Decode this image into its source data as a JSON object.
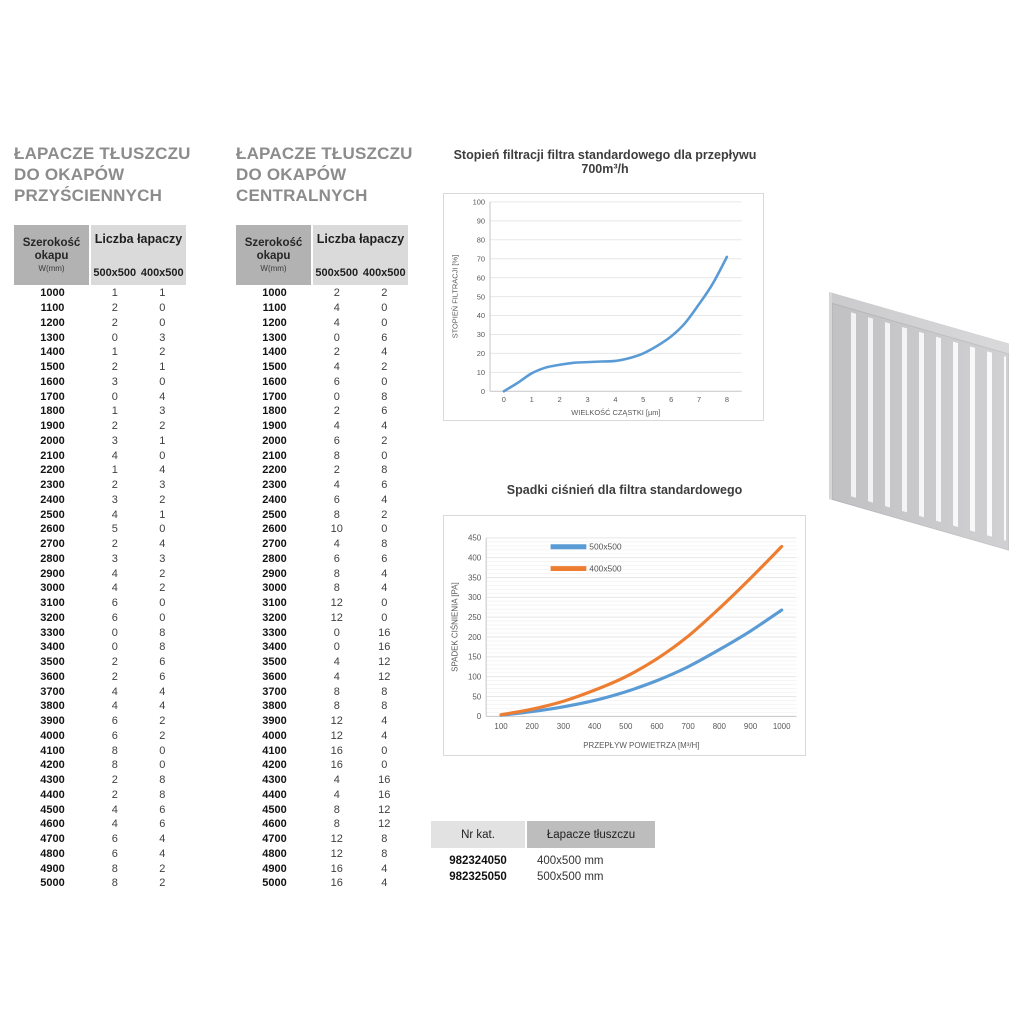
{
  "tables": {
    "wall": {
      "title_lines": [
        "ŁAPACZE TŁUSZCZU",
        "DO OKAPÓW",
        "PRZYŚCIENNYCH"
      ],
      "header": {
        "col1_line1": "Szerokość",
        "col1_line2": "okapu",
        "col1_sub": "W(mm)",
        "group": "Liczba łapaczy",
        "col2": "500x500",
        "col3": "400x500"
      },
      "rows": [
        [
          1000,
          1,
          1
        ],
        [
          1100,
          2,
          0
        ],
        [
          1200,
          2,
          0
        ],
        [
          1300,
          0,
          3
        ],
        [
          1400,
          1,
          2
        ],
        [
          1500,
          2,
          1
        ],
        [
          1600,
          3,
          0
        ],
        [
          1700,
          0,
          4
        ],
        [
          1800,
          1,
          3
        ],
        [
          1900,
          2,
          2
        ],
        [
          2000,
          3,
          1
        ],
        [
          2100,
          4,
          0
        ],
        [
          2200,
          1,
          4
        ],
        [
          2300,
          2,
          3
        ],
        [
          2400,
          3,
          2
        ],
        [
          2500,
          4,
          1
        ],
        [
          2600,
          5,
          0
        ],
        [
          2700,
          2,
          4
        ],
        [
          2800,
          3,
          3
        ],
        [
          2900,
          4,
          2
        ],
        [
          3000,
          4,
          2
        ],
        [
          3100,
          6,
          0
        ],
        [
          3200,
          6,
          0
        ],
        [
          3300,
          0,
          8
        ],
        [
          3400,
          0,
          8
        ],
        [
          3500,
          2,
          6
        ],
        [
          3600,
          2,
          6
        ],
        [
          3700,
          4,
          4
        ],
        [
          3800,
          4,
          4
        ],
        [
          3900,
          6,
          2
        ],
        [
          4000,
          6,
          2
        ],
        [
          4100,
          8,
          0
        ],
        [
          4200,
          8,
          0
        ],
        [
          4300,
          2,
          8
        ],
        [
          4400,
          2,
          8
        ],
        [
          4500,
          4,
          6
        ],
        [
          4600,
          4,
          6
        ],
        [
          4700,
          6,
          4
        ],
        [
          4800,
          6,
          4
        ],
        [
          4900,
          8,
          2
        ],
        [
          5000,
          8,
          2
        ]
      ]
    },
    "central": {
      "title_lines": [
        "ŁAPACZE TŁUSZCZU",
        "DO OKAPÓW",
        "CENTRALNYCH"
      ],
      "header": {
        "col1_line1": "Szerokość",
        "col1_line2": "okapu",
        "col1_sub": "W(mm)",
        "group": "Liczba łapaczy",
        "col2": "500x500",
        "col3": "400x500"
      },
      "rows": [
        [
          1000,
          2,
          2
        ],
        [
          1100,
          4,
          0
        ],
        [
          1200,
          4,
          0
        ],
        [
          1300,
          0,
          6
        ],
        [
          1400,
          2,
          4
        ],
        [
          1500,
          4,
          2
        ],
        [
          1600,
          6,
          0
        ],
        [
          1700,
          0,
          8
        ],
        [
          1800,
          2,
          6
        ],
        [
          1900,
          4,
          4
        ],
        [
          2000,
          6,
          2
        ],
        [
          2100,
          8,
          0
        ],
        [
          2200,
          2,
          8
        ],
        [
          2300,
          4,
          6
        ],
        [
          2400,
          6,
          4
        ],
        [
          2500,
          8,
          2
        ],
        [
          2600,
          10,
          0
        ],
        [
          2700,
          4,
          8
        ],
        [
          2800,
          6,
          6
        ],
        [
          2900,
          8,
          4
        ],
        [
          3000,
          8,
          4
        ],
        [
          3100,
          12,
          0
        ],
        [
          3200,
          12,
          0
        ],
        [
          3300,
          0,
          16
        ],
        [
          3400,
          0,
          16
        ],
        [
          3500,
          4,
          12
        ],
        [
          3600,
          4,
          12
        ],
        [
          3700,
          8,
          8
        ],
        [
          3800,
          8,
          8
        ],
        [
          3900,
          12,
          4
        ],
        [
          4000,
          12,
          4
        ],
        [
          4100,
          16,
          0
        ],
        [
          4200,
          16,
          0
        ],
        [
          4300,
          4,
          16
        ],
        [
          4400,
          4,
          16
        ],
        [
          4500,
          8,
          12
        ],
        [
          4600,
          8,
          12
        ],
        [
          4700,
          12,
          8
        ],
        [
          4800,
          12,
          8
        ],
        [
          4900,
          16,
          4
        ],
        [
          5000,
          16,
          4
        ]
      ]
    }
  },
  "catalog": {
    "headers": [
      "Nr kat.",
      "Łapacze tłuszczu"
    ],
    "rows": [
      [
        "982324050",
        "400x500 mm"
      ],
      [
        "982325050",
        "500x500 mm"
      ]
    ]
  },
  "product_image": {
    "alt": "Baffle grease filter panel"
  },
  "colors": {
    "series_blue": "#5b9bd5",
    "series_orange": "#ed7d31",
    "table_header_dark": "#b2b2b2",
    "table_header_light": "#dadada"
  },
  "chart_data": [
    {
      "type": "line",
      "title": "Stopień filtracji filtra standardowego dla przepływu 700m³/h",
      "xlabel": "WIELKOŚĆ CZĄSTKI [µm]",
      "ylabel": "STOPIEŃ FILTRACJI [%]",
      "xlim": [
        0,
        8
      ],
      "ylim": [
        0,
        100
      ],
      "xtick_step": 1,
      "ytick_step": 10,
      "grid": "horizontal",
      "legend": false,
      "series": [
        {
          "name": "stopień filtracji",
          "color": "#5b9bd5",
          "x": [
            0,
            0.5,
            1,
            1.5,
            2,
            2.5,
            3,
            3.5,
            4,
            4.5,
            5,
            5.5,
            6,
            6.5,
            7,
            7.5,
            8
          ],
          "y": [
            0,
            4.5,
            9.5,
            12.5,
            14,
            15,
            15.4,
            15.7,
            16,
            17.5,
            20,
            24,
            29,
            36,
            46,
            57,
            71
          ]
        }
      ]
    },
    {
      "type": "line",
      "title": "Spadki ciśnień dla filtra standardowego",
      "xlabel": "PRZEPŁYW POWIETRZA [M³/H]",
      "ylabel": "SPADEK CIŚNIENIA [PA]",
      "xlim": [
        100,
        1000
      ],
      "ylim": [
        0,
        450
      ],
      "xtick_step": 100,
      "ytick_step": 50,
      "grid": "horizontal",
      "legend": true,
      "legend_position": "top-left-inside",
      "series": [
        {
          "name": "500x500",
          "color": "#5b9bd5",
          "x": [
            100,
            200,
            300,
            400,
            500,
            600,
            700,
            800,
            900,
            1000
          ],
          "y": [
            3,
            12,
            24,
            40,
            62,
            90,
            125,
            168,
            215,
            268
          ]
        },
        {
          "name": "400x500",
          "color": "#ed7d31",
          "x": [
            100,
            200,
            300,
            400,
            500,
            600,
            700,
            800,
            900,
            1000
          ],
          "y": [
            4,
            18,
            38,
            66,
            100,
            145,
            202,
            272,
            348,
            428
          ]
        }
      ]
    }
  ]
}
